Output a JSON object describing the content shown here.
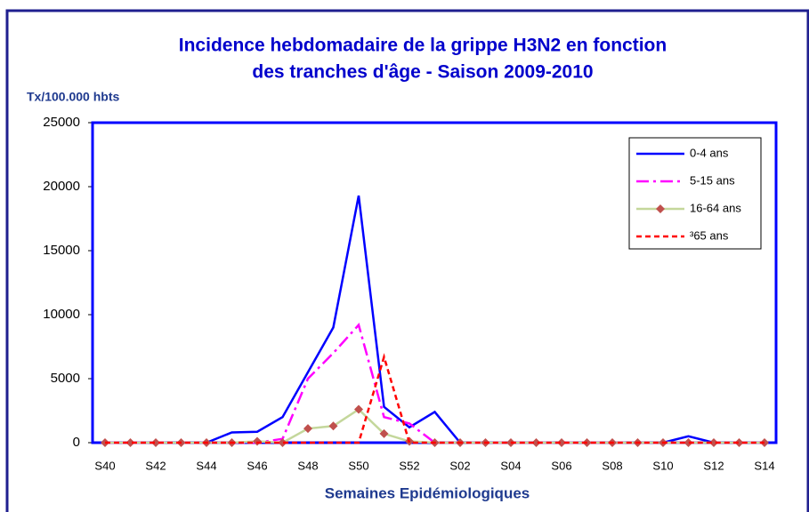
{
  "chart_data": {
    "type": "line",
    "title": [
      "Incidence hebdomadaire de la grippe H3N2 en fonction",
      "des tranches d'âge  - Saison 2009-2010"
    ],
    "y_label": "Tx/100.000 hbts",
    "x_label": "Semaines Epidémiologiques",
    "categories": [
      "S40",
      null,
      "S42",
      null,
      "S44",
      null,
      "S46",
      null,
      "S48",
      null,
      "S50",
      null,
      "S52",
      null,
      "S02",
      null,
      "S04",
      null,
      "S06",
      null,
      "S08",
      null,
      "S10",
      null,
      "S12",
      null,
      "S14"
    ],
    "series": [
      {
        "name": "0-4 ans",
        "color": "#0000ff",
        "dash": "solid",
        "values": [
          0,
          0,
          0,
          0,
          0,
          800,
          850,
          2000,
          5500,
          9000,
          19300,
          2800,
          1200,
          2400,
          0,
          0,
          0,
          0,
          0,
          0,
          0,
          0,
          0,
          500,
          0,
          0,
          0
        ]
      },
      {
        "name": "5-15 ans",
        "color": "#ff00ff",
        "dash": "dashdot",
        "values": [
          0,
          0,
          0,
          0,
          0,
          0,
          0,
          300,
          5000,
          7000,
          9200,
          2000,
          1500,
          0,
          0,
          0,
          0,
          0,
          0,
          0,
          0,
          0,
          0,
          0,
          0,
          0,
          0
        ]
      },
      {
        "name": "16-64 ans",
        "color": "#c4d79b",
        "marker": "#c0504d",
        "dash": "solid",
        "values": [
          0,
          0,
          0,
          0,
          0,
          0,
          100,
          0,
          1100,
          1300,
          2600,
          700,
          100,
          0,
          0,
          0,
          0,
          0,
          0,
          0,
          0,
          0,
          0,
          0,
          0,
          0,
          0
        ]
      },
      {
        "name": "³65 ans",
        "color": "#ff0000",
        "dash": "dash",
        "values": [
          0,
          0,
          0,
          0,
          0,
          0,
          0,
          0,
          0,
          0,
          0,
          6700,
          0,
          0,
          0,
          0,
          0,
          0,
          0,
          0,
          0,
          0,
          0,
          0,
          0,
          0,
          0
        ]
      }
    ],
    "ylim": [
      0,
      25000
    ],
    "yticks": [
      0,
      5000,
      10000,
      15000,
      20000,
      25000
    ],
    "legend": "upper right"
  }
}
